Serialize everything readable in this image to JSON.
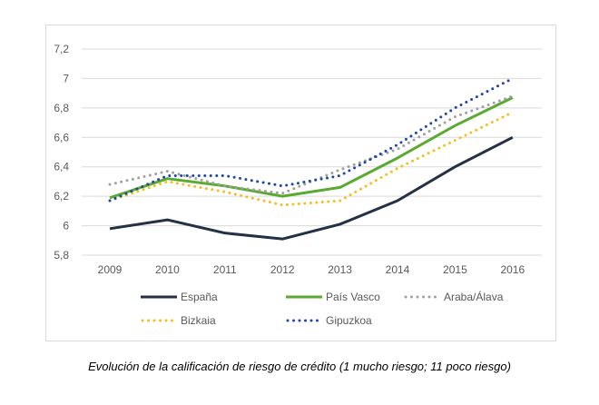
{
  "chart_data": {
    "type": "line",
    "title": "",
    "xlabel": "",
    "ylabel": "",
    "categories": [
      "2009",
      "2010",
      "2011",
      "2012",
      "2013",
      "2014",
      "2015",
      "2016"
    ],
    "ylim": [
      5.8,
      7.2
    ],
    "yticks": [
      "5,8",
      "6",
      "6,2",
      "6,4",
      "6,6",
      "6,8",
      "7",
      "7,2"
    ],
    "grid": true,
    "legend_placement": "bottom",
    "series": [
      {
        "name": "España",
        "color": "#243046",
        "style": "solid",
        "values": [
          5.98,
          6.04,
          5.95,
          5.91,
          6.01,
          6.17,
          6.4,
          6.6
        ]
      },
      {
        "name": "País Vasco",
        "color": "#5aaa32",
        "style": "solid",
        "values": [
          6.19,
          6.32,
          6.27,
          6.2,
          6.26,
          6.46,
          6.68,
          6.87
        ]
      },
      {
        "name": "Araba/Álava",
        "color": "#a0a0a0",
        "style": "dotted",
        "values": [
          6.28,
          6.37,
          6.27,
          6.22,
          6.38,
          6.52,
          6.74,
          6.88
        ]
      },
      {
        "name": "Bizkaia",
        "color": "#f5bd1f",
        "style": "dotted",
        "values": [
          6.17,
          6.3,
          6.23,
          6.14,
          6.17,
          6.39,
          6.58,
          6.77
        ]
      },
      {
        "name": "Gipuzkoa",
        "color": "#1f45a8",
        "style": "dotted",
        "values": [
          6.17,
          6.34,
          6.34,
          6.27,
          6.34,
          6.55,
          6.8,
          7.0
        ]
      }
    ]
  },
  "caption": "Evolución de la calificación de riesgo de crédito (1 mucho riesgo; 11 poco riesgo)"
}
